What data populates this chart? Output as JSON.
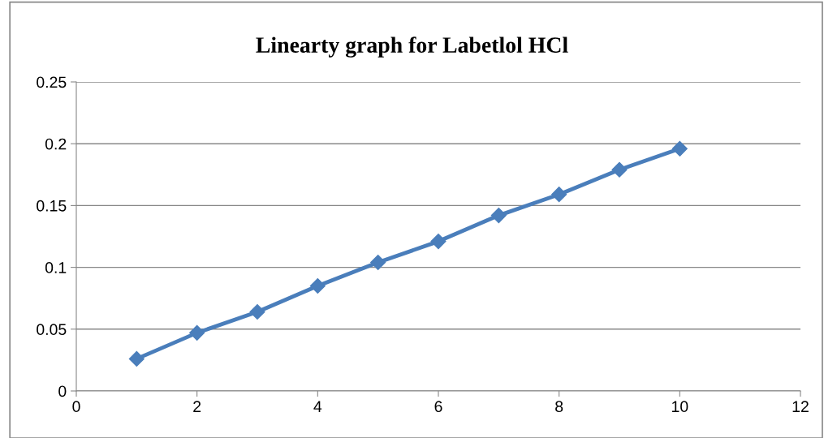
{
  "chart_data": {
    "type": "line",
    "title": "Linearty graph for Labetlol HCl",
    "x": [
      1,
      2,
      3,
      4,
      5,
      6,
      7,
      8,
      9,
      10
    ],
    "series": [
      {
        "color": "#4a7ebb",
        "values": [
          0.026,
          0.047,
          0.064,
          0.085,
          0.104,
          0.121,
          0.142,
          0.159,
          0.179,
          0.196
        ]
      }
    ],
    "xlim": [
      0,
      12
    ],
    "xticks": [
      0,
      2,
      4,
      6,
      8,
      10,
      12
    ],
    "ylim": [
      0,
      0.25
    ],
    "yticks": [
      0,
      0.05,
      0.1,
      0.15,
      0.2,
      0.25
    ],
    "grid": "y",
    "marker": "diamond",
    "line_style": "solid"
  }
}
